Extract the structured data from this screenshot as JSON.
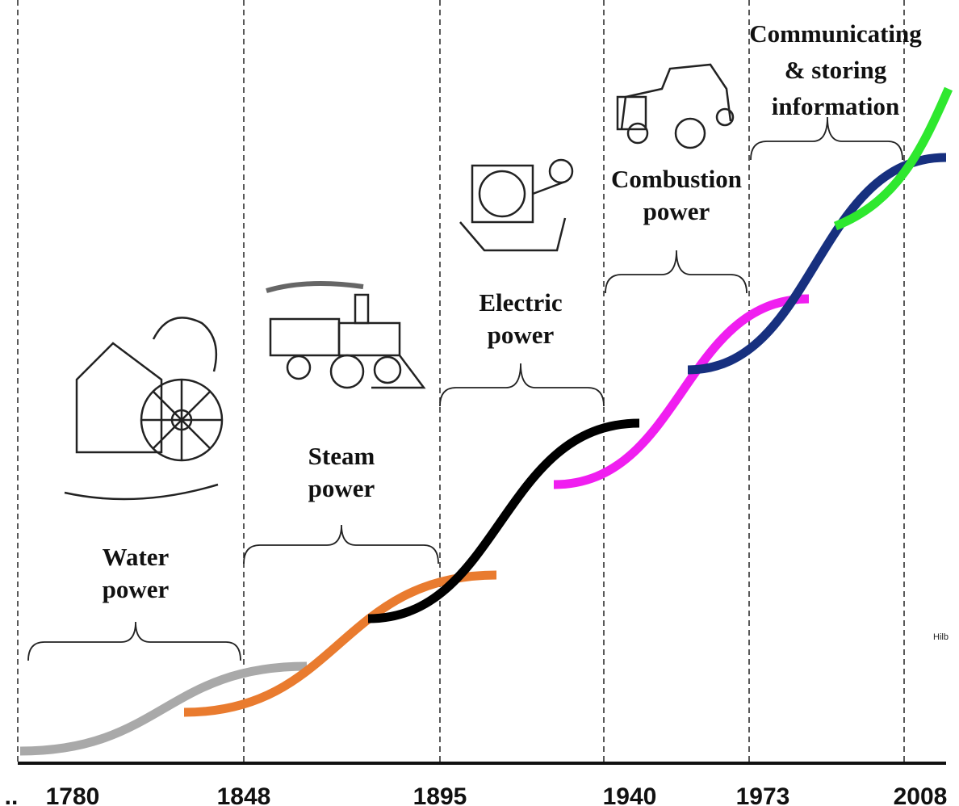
{
  "eras": [
    {
      "lines": [
        "Water",
        "power"
      ]
    },
    {
      "lines": [
        "Steam",
        "power"
      ]
    },
    {
      "lines": [
        "Electric",
        "power"
      ]
    },
    {
      "lines": [
        "Combustion",
        "power"
      ]
    },
    {
      "lines": [
        "Communicating",
        "& storing",
        "information"
      ]
    }
  ],
  "timeline": {
    "lead": "..",
    "years": [
      "1780",
      "1848",
      "1895",
      "1940",
      "1973",
      "2008"
    ]
  },
  "credit": "Hilb"
}
